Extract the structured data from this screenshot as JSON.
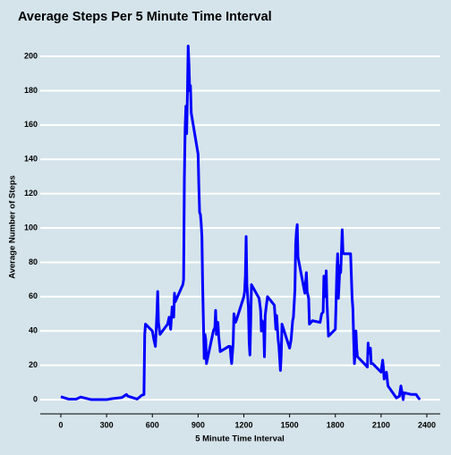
{
  "chart_data": {
    "type": "line",
    "title": "Average Steps Per 5 Minute Time Interval",
    "x_label": "5 Minute Time Interval",
    "y_label": "Average Number of Steps",
    "color": "#0000ff",
    "grid": true,
    "xlim": [
      -135,
      2488
    ],
    "ylim": [
      -8.3,
      209.4
    ],
    "xticks": [
      0,
      300,
      600,
      900,
      1200,
      1500,
      1800,
      2100,
      2400
    ],
    "yticks": [
      0,
      20,
      40,
      60,
      80,
      100,
      120,
      140,
      160,
      180,
      200
    ],
    "x": [
      0,
      50,
      100,
      130,
      200,
      300,
      330,
      400,
      430,
      440,
      500,
      530,
      545,
      550,
      555,
      600,
      610,
      620,
      630,
      635,
      640,
      650,
      700,
      710,
      720,
      730,
      740,
      745,
      750,
      800,
      805,
      810,
      815,
      820,
      825,
      830,
      835,
      840,
      845,
      850,
      855,
      900,
      905,
      910,
      915,
      920,
      925,
      930,
      935,
      940,
      945,
      950,
      955,
      1000,
      1010,
      1015,
      1020,
      1030,
      1035,
      1045,
      1100,
      1110,
      1115,
      1120,
      1130,
      1135,
      1145,
      1150,
      1200,
      1205,
      1210,
      1215,
      1220,
      1230,
      1235,
      1240,
      1245,
      1250,
      1300,
      1310,
      1315,
      1320,
      1330,
      1335,
      1340,
      1345,
      1355,
      1400,
      1410,
      1415,
      1425,
      1430,
      1440,
      1445,
      1450,
      1500,
      1510,
      1520,
      1525,
      1535,
      1540,
      1545,
      1550,
      1555,
      1600,
      1610,
      1615,
      1625,
      1630,
      1640,
      1650,
      1700,
      1710,
      1720,
      1725,
      1730,
      1735,
      1740,
      1745,
      1755,
      1800,
      1805,
      1810,
      1815,
      1820,
      1825,
      1830,
      1835,
      1840,
      1845,
      1850,
      1855,
      1900,
      1910,
      1915,
      1920,
      1925,
      1930,
      1935,
      1940,
      1945,
      2000,
      2010,
      2015,
      2020,
      2030,
      2035,
      2045,
      2100,
      2110,
      2115,
      2120,
      2130,
      2135,
      2145,
      2200,
      2220,
      2230,
      2245,
      2250,
      2300,
      2330,
      2345,
      2355
    ],
    "values": [
      1.7,
      0.3,
      0.3,
      1.5,
      0,
      0,
      0.5,
      1.2,
      3,
      2,
      0.3,
      2.5,
      3,
      38,
      44,
      40,
      35,
      31,
      50,
      63,
      45,
      38,
      44,
      48,
      41,
      54,
      48,
      62,
      57,
      67,
      70,
      129,
      158,
      171,
      155,
      178,
      206,
      195,
      180,
      183,
      167,
      143,
      124,
      109,
      108,
      103,
      95,
      66,
      45,
      24,
      38,
      35,
      21,
      40,
      42,
      52,
      38,
      45,
      37,
      28,
      31,
      31,
      25,
      21,
      33,
      50,
      45,
      46,
      60,
      63,
      72,
      95,
      67,
      54,
      33,
      26,
      45,
      67,
      59,
      52,
      40,
      46,
      43,
      25,
      49,
      53,
      60,
      55,
      41,
      49,
      35,
      31,
      17,
      26,
      44,
      30,
      35,
      46,
      48,
      64,
      91,
      98,
      102,
      83,
      62,
      74,
      63,
      59,
      44,
      45,
      46,
      45,
      50,
      51,
      72,
      68,
      60,
      75,
      57,
      37,
      41,
      58,
      75,
      85,
      59,
      68,
      78,
      74,
      86,
      99,
      86,
      85,
      85,
      59,
      53,
      36,
      21,
      27,
      40,
      30,
      25,
      20,
      19,
      33,
      27,
      30,
      21,
      21,
      16,
      23,
      19,
      12,
      15,
      16,
      8,
      1,
      2,
      8,
      0,
      4,
      3,
      3,
      1,
      0
    ]
  }
}
